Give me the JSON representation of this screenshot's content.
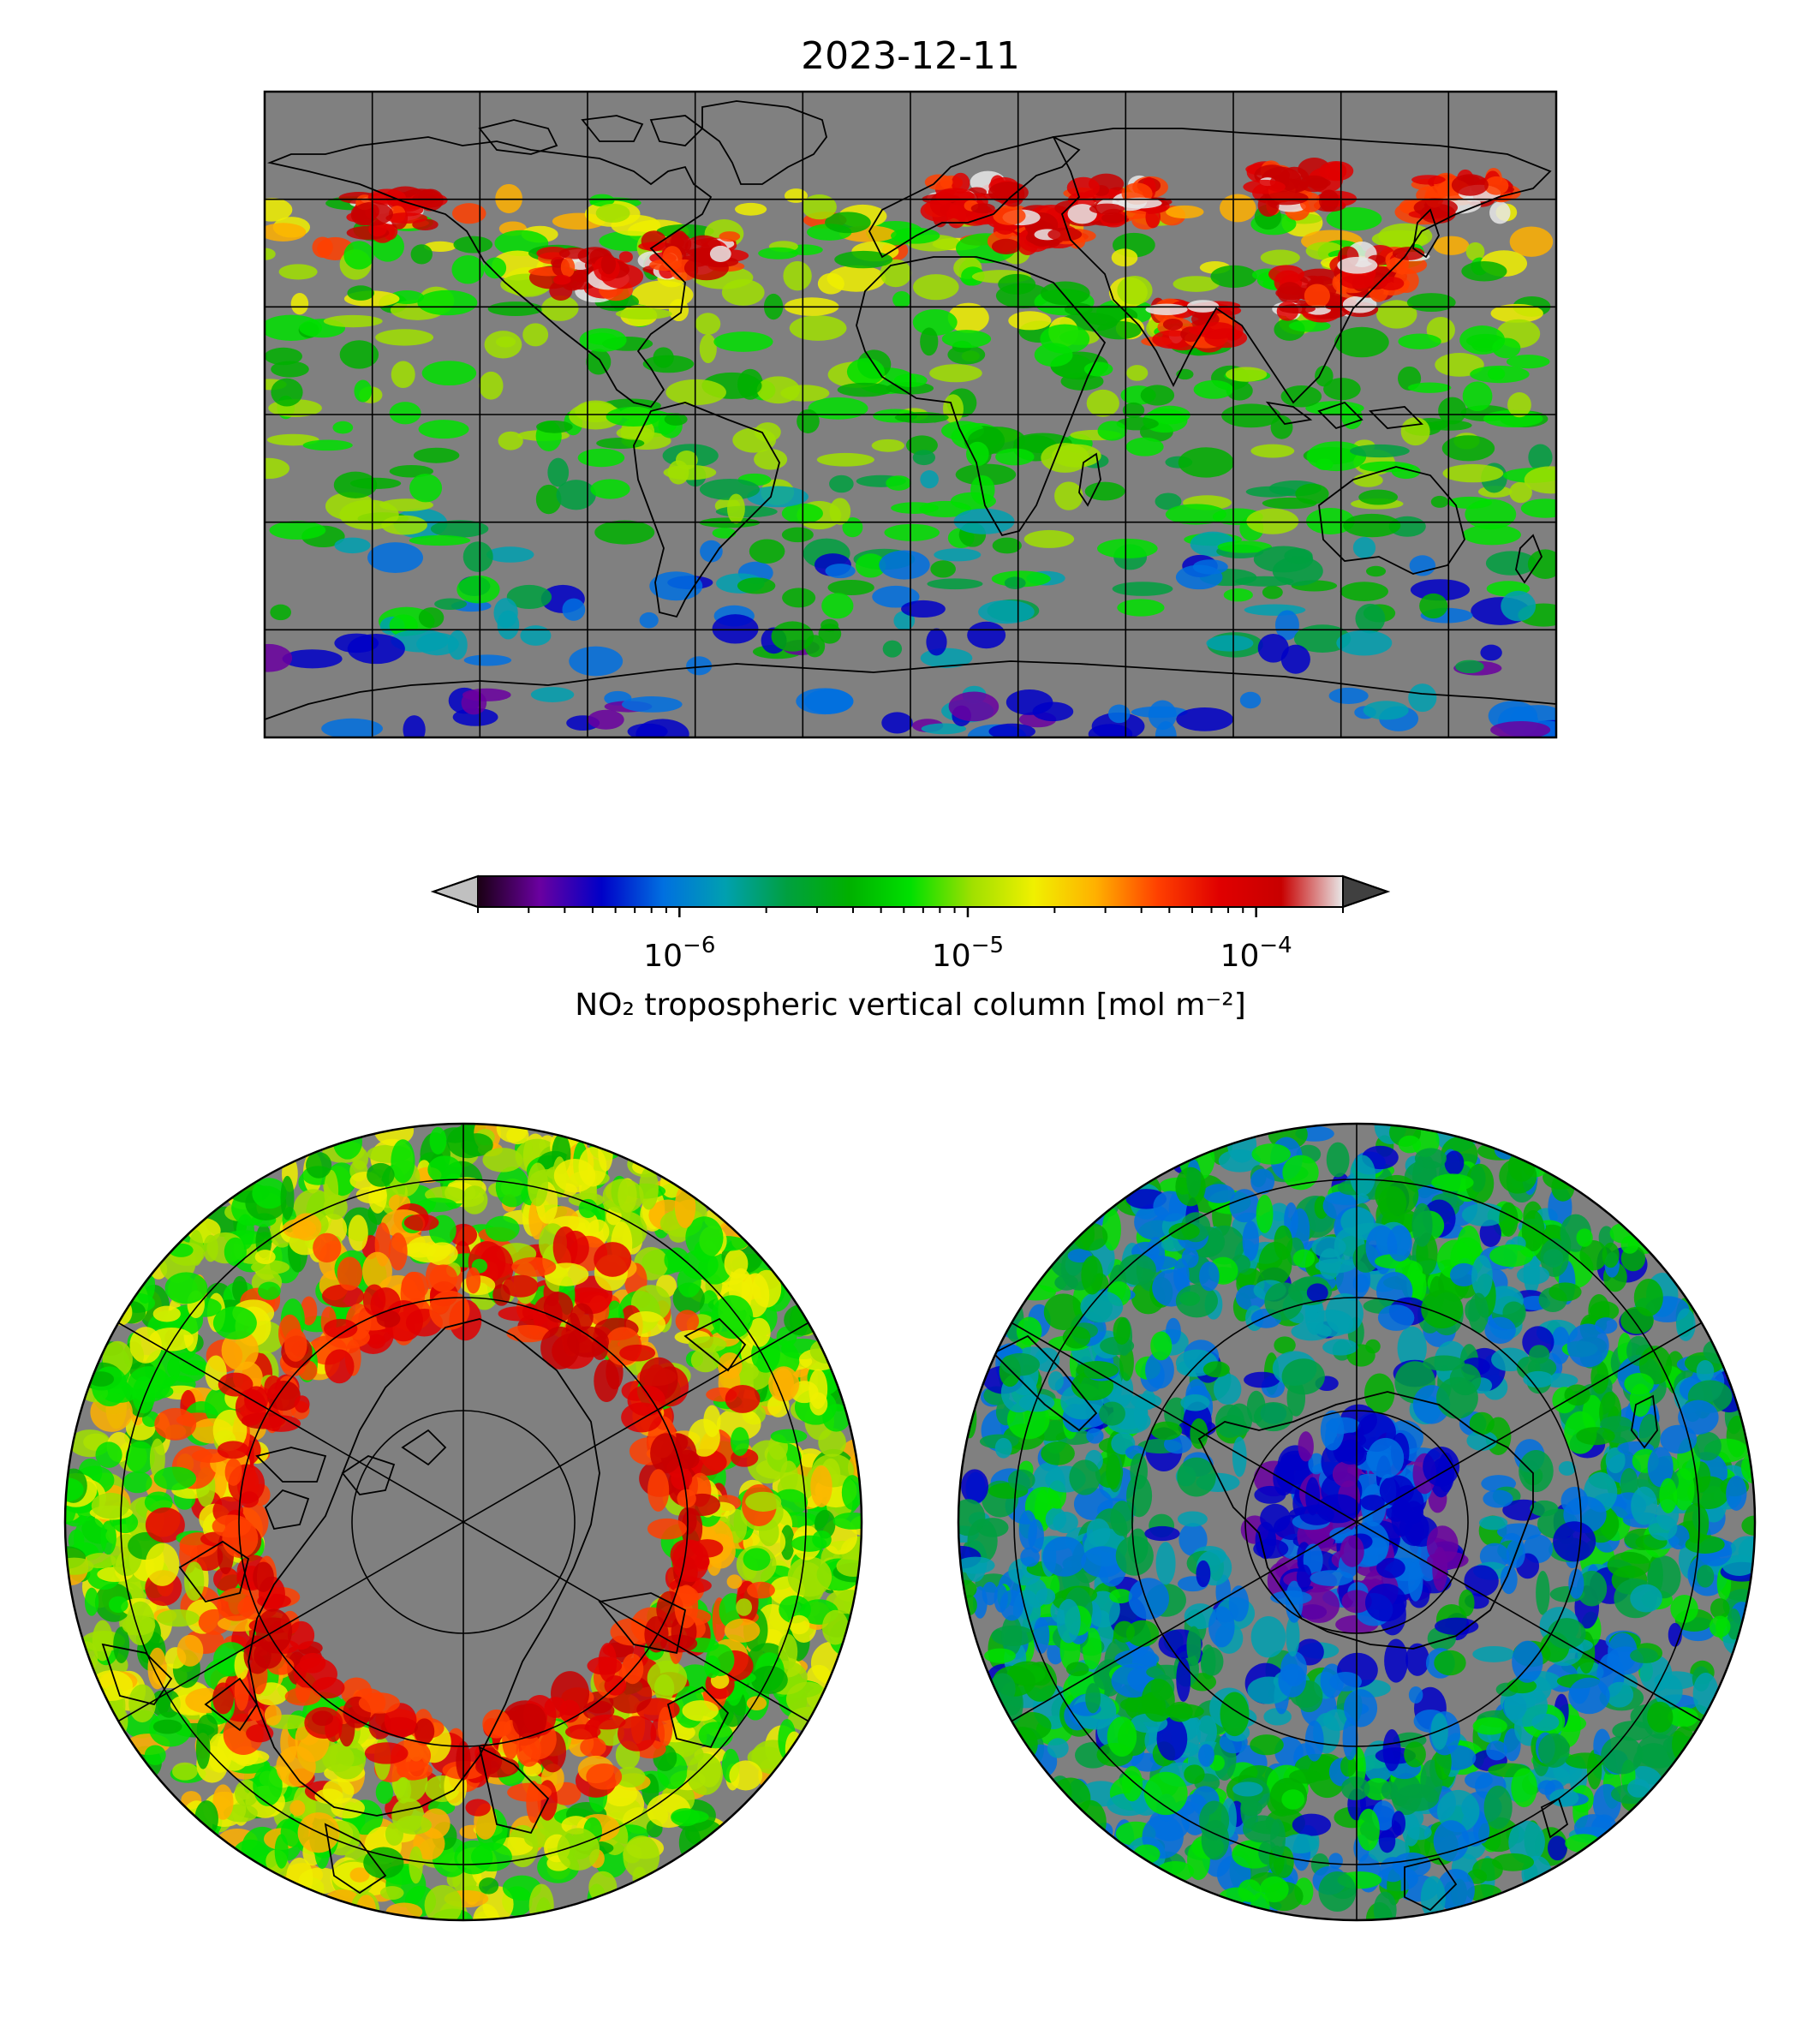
{
  "figure": {
    "title": "2023-12-11"
  },
  "colorbar": {
    "label": "NO₂ tropospheric vertical column [mol m⁻²]",
    "scale": "log",
    "range": [
      2e-07,
      0.0002
    ],
    "extend": "both",
    "ticks": [
      {
        "value": 1e-06,
        "base": "10",
        "exp": "−6"
      },
      {
        "value": 1e-05,
        "base": "10",
        "exp": "−5"
      },
      {
        "value": 0.0001,
        "base": "10",
        "exp": "−4"
      }
    ],
    "colors": [
      "#1a0014",
      "#6a00a0",
      "#0000c8",
      "#0070e0",
      "#00a0b0",
      "#00a040",
      "#00b000",
      "#00e000",
      "#a0e000",
      "#f0f000",
      "#ffb000",
      "#ff4000",
      "#e00000",
      "#c80000",
      "#e8e8e8"
    ],
    "under_color": "#c0c0c0",
    "over_color": "#404040"
  },
  "maps": {
    "nodata_color": "#808080",
    "global_map": {
      "projection": "plate-carree",
      "gridlines": "on"
    },
    "north_polar_map": {
      "projection": "north-polar-stereographic",
      "gridlines": "on"
    },
    "south_polar_map": {
      "projection": "south-polar-stereographic",
      "gridlines": "on"
    }
  }
}
